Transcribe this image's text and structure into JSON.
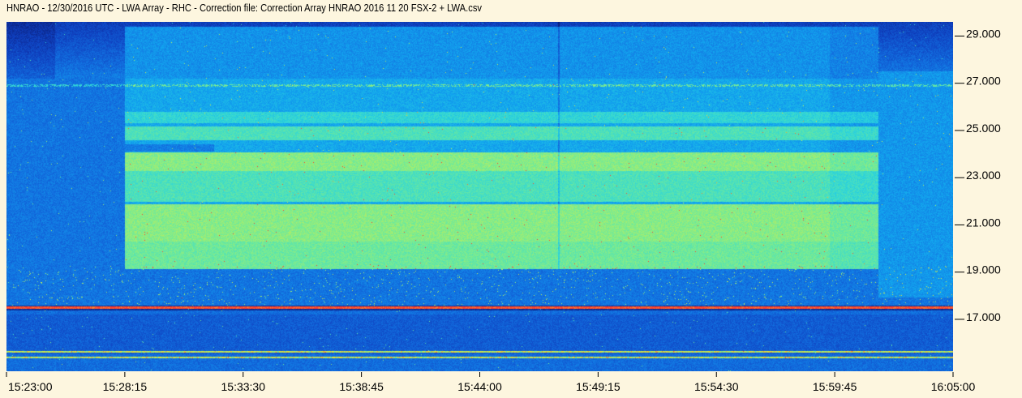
{
  "title": "HNRAO - 12/30/2016  UTC - LWA Array - RHC - Correction file: Correction Array HNRAO 2016 11 20 FSX-2 + LWA.csv",
  "chart_data": {
    "type": "heatmap",
    "title": "HNRAO - 12/30/2016  UTC - LWA Array - RHC - Correction file: Correction Array HNRAO 2016 11 20 FSX-2 + LWA.csv",
    "xlabel": "",
    "ylabel": "",
    "x_tick_labels": [
      "15:23:00",
      "15:28:15",
      "15:33:30",
      "15:38:45",
      "15:44:00",
      "15:49:15",
      "15:54:30",
      "15:59:45",
      "16:05:00"
    ],
    "x_range": [
      "15:23:00",
      "16:05:00"
    ],
    "y_tick_labels": [
      "29.000",
      "27.000",
      "25.000",
      "23.000",
      "21.000",
      "19.000",
      "17.000"
    ],
    "y_ticks": [
      29,
      27,
      25,
      23,
      21,
      19,
      17
    ],
    "y_range": [
      14.8,
      29.6
    ],
    "y_axis_side": "right",
    "colormap": [
      "#0a1e78",
      "#0f3fbf",
      "#1270e0",
      "#12a6ef",
      "#2fd6d9",
      "#6fea9a",
      "#c6ef55",
      "#f2e52b",
      "#ff3b2f"
    ],
    "background_color": "#fdf6df",
    "features": {
      "burst_start": "15:28:15",
      "burst_end": "16:01:40",
      "dark_vertical_line": "15:47:30",
      "strong_interference_band_MHz": 17.5,
      "bright_band_MHz": [
        [
          23.3,
          24.1
        ],
        [
          19.9,
          21.9
        ]
      ],
      "mid_band_MHz": [
        [
          24.6,
          25.2
        ],
        [
          22.0,
          23.3
        ]
      ]
    }
  }
}
